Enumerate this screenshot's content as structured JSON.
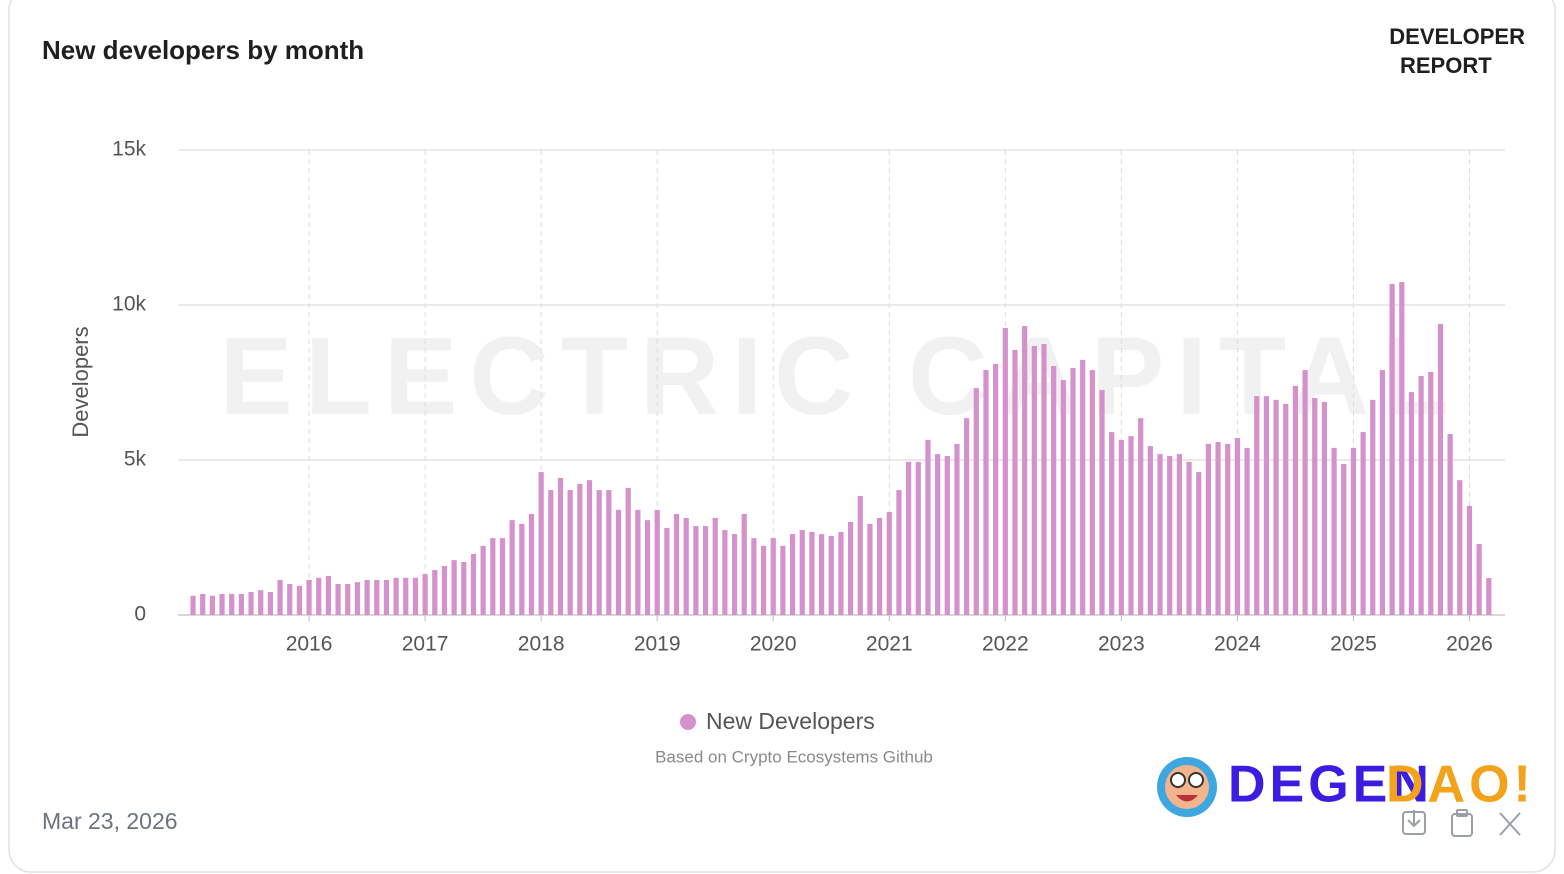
{
  "chart_data": {
    "type": "bar",
    "title": "New developers by month",
    "brand": [
      "DEVELOPER",
      "REPORT"
    ],
    "watermark": "ELECTRIC CAPITAL",
    "y_label": "Developers",
    "source": "Based on Crypto Ecosystems Github",
    "date": "Mar 23, 2026",
    "logo": [
      "DEGEN",
      "DAO!"
    ],
    "categories": [
      null,
      null,
      null,
      null,
      null,
      null,
      null,
      null,
      null,
      null,
      null,
      null,
      "2016",
      null,
      null,
      null,
      null,
      null,
      null,
      null,
      null,
      null,
      null,
      null,
      "2017",
      null,
      null,
      null,
      null,
      null,
      null,
      null,
      null,
      null,
      null,
      null,
      "2018",
      null,
      null,
      null,
      null,
      null,
      null,
      null,
      null,
      null,
      null,
      null,
      "2019",
      null,
      null,
      null,
      null,
      null,
      null,
      null,
      null,
      null,
      null,
      null,
      "2020",
      null,
      null,
      null,
      null,
      null,
      null,
      null,
      null,
      null,
      null,
      null,
      "2021",
      null,
      null,
      null,
      null,
      null,
      null,
      null,
      null,
      null,
      null,
      null,
      "2022",
      null,
      null,
      null,
      null,
      null,
      null,
      null,
      null,
      null,
      null,
      null,
      "2023",
      null,
      null,
      null,
      null,
      null,
      null,
      null,
      null,
      null,
      null,
      null,
      "2024",
      null,
      null,
      null,
      null,
      null,
      null,
      null,
      null,
      null,
      null,
      null,
      "2025",
      null,
      null,
      null,
      null,
      null,
      null,
      null,
      null,
      null,
      null,
      null,
      "2026",
      null,
      null
    ],
    "xtick_labels_every": 2,
    "series": [
      {
        "name": "New Developers",
        "color": "#d491cc",
        "values": [
          620,
          680,
          620,
          680,
          680,
          680,
          740,
          800,
          740,
          1130,
          1000,
          940,
          1130,
          1200,
          1260,
          1000,
          1000,
          1060,
          1130,
          1130,
          1130,
          1200,
          1200,
          1200,
          1320,
          1450,
          1580,
          1770,
          1710,
          1970,
          2230,
          2480,
          2480,
          3060,
          2940,
          3260,
          4610,
          4030,
          4420,
          4030,
          4230,
          4350,
          4030,
          4030,
          3390,
          4100,
          3390,
          3060,
          3390,
          2810,
          3260,
          3130,
          2870,
          2870,
          3130,
          2740,
          2610,
          3260,
          2480,
          2230,
          2480,
          2230,
          2610,
          2740,
          2680,
          2610,
          2550,
          2680,
          3000,
          3840,
          2940,
          3130,
          3320,
          4030,
          4940,
          4940,
          5650,
          5190,
          5130,
          5520,
          6350,
          7320,
          7900,
          8100,
          9260,
          8550,
          9320,
          8680,
          8740,
          8030,
          7580,
          7970,
          8230,
          7900,
          7260,
          5900,
          5650,
          5770,
          6350,
          5450,
          5190,
          5130,
          5190,
          4940,
          4610,
          5520,
          5580,
          5520,
          5710,
          5390,
          7060,
          7060,
          6940,
          6810,
          7390,
          7900,
          7000,
          6870,
          5390,
          4870,
          5390,
          5900,
          6940,
          7900,
          10680,
          10740,
          7190,
          7710,
          7840,
          9390,
          5840,
          4350,
          3520,
          2290,
          1190
        ]
      }
    ],
    "ylim": [
      0,
      15000
    ],
    "yticks": [
      0,
      {
        "value": 5000,
        "label": "5k"
      },
      {
        "value": 10000,
        "label": "10k"
      },
      {
        "value": 15000,
        "label": "15k"
      }
    ],
    "grid": true
  }
}
